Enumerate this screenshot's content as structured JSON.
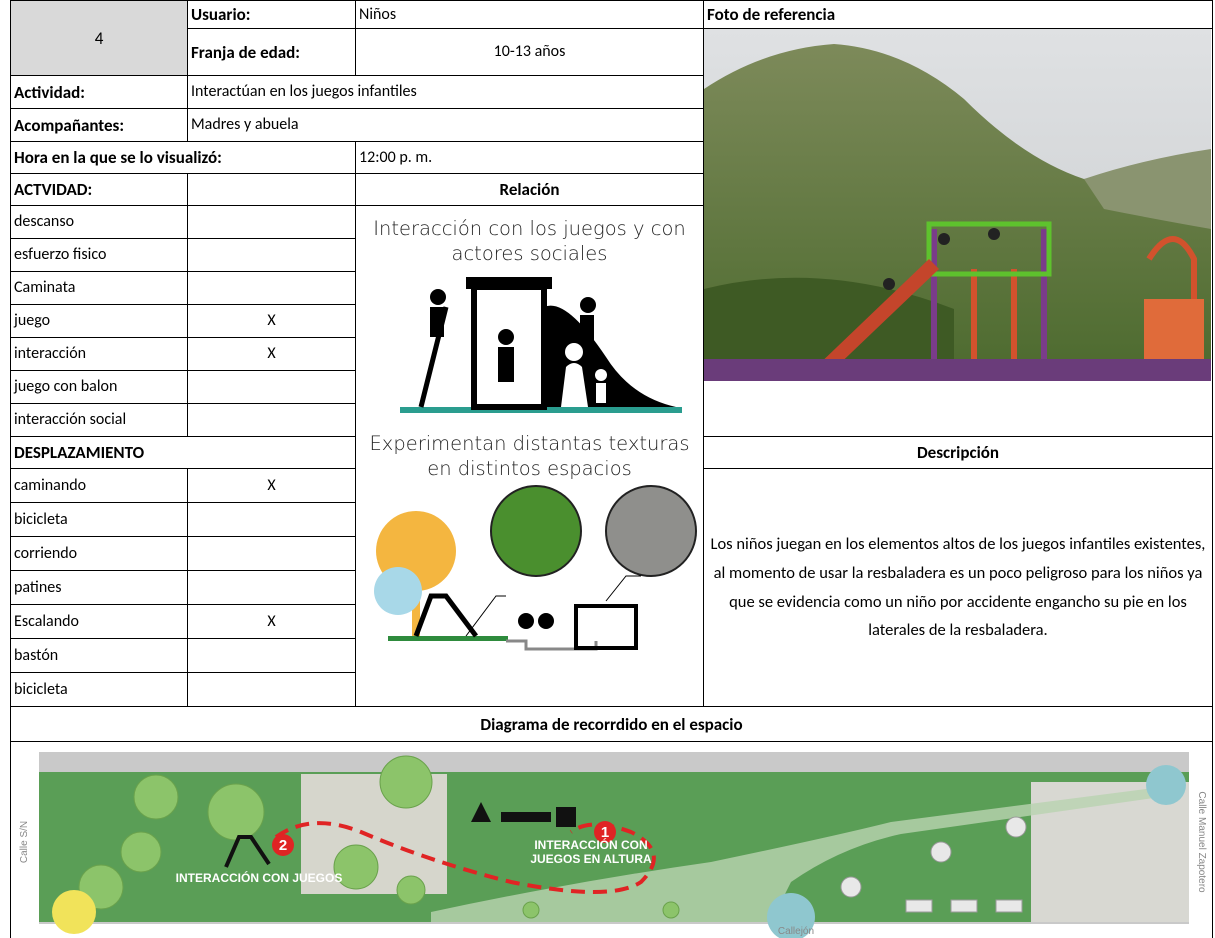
{
  "header": {
    "number": "4",
    "user_label": "Usuario:",
    "user": "Niños",
    "age_label": "Franja de edad:",
    "age": "10-13 años",
    "activity_label": "Actividad:",
    "activity": "Interactúan en los juegos infantiles",
    "companions_label": "Acompañantes:",
    "companions": "Madres y abuela",
    "time_label": "Hora en la que se lo visualizó:",
    "time": "12:00 p. m."
  },
  "activities": {
    "title": "ACTVIDAD:",
    "rows": [
      {
        "label": "descanso"
      },
      {
        "label": "esfuerzo fisico"
      },
      {
        "label": "Caminata"
      },
      {
        "label": "juego",
        "mark": "X"
      },
      {
        "label": "interacción",
        "mark": "X"
      },
      {
        "label": "juego con balon"
      },
      {
        "label": "interacción social"
      }
    ]
  },
  "displacement": {
    "title": "DESPLAZAMIENTO",
    "rows": [
      {
        "label": "caminando",
        "mark": "X"
      },
      {
        "label": "bicicleta"
      },
      {
        "label": "corriendo"
      },
      {
        "label": "patines"
      },
      {
        "label": "Escalando",
        "mark": "X"
      },
      {
        "label": "bastón"
      },
      {
        "label": "bicicleta"
      }
    ]
  },
  "relation": {
    "title": "Relación",
    "captions": [
      "Interacción con los juegos y con actores sociales",
      "Experimentan distantas texturas en distintos espacios"
    ]
  },
  "photo": {
    "title": "Foto de referencia"
  },
  "description": {
    "title": "Descripción",
    "text": "Los niños juegan en los elementos altos de los juegos infantiles existentes, al momento de usar la resbaladera es un poco peligroso para los niños ya que se evidencia como un niño por accidente engancho su pie en los laterales de la resbaladera."
  },
  "diagram": {
    "title": "Diagrama de recorrdido en el espacio",
    "labels": [
      "INTERACCIÓN CON JUEGOS",
      "INTERACCIÓN CON JUEGOS EN ALTURA"
    ],
    "markers": [
      "1",
      "2"
    ],
    "streets": [
      "Calle S/N",
      "Calle Manuel Zapotero",
      "Callejón"
    ]
  }
}
